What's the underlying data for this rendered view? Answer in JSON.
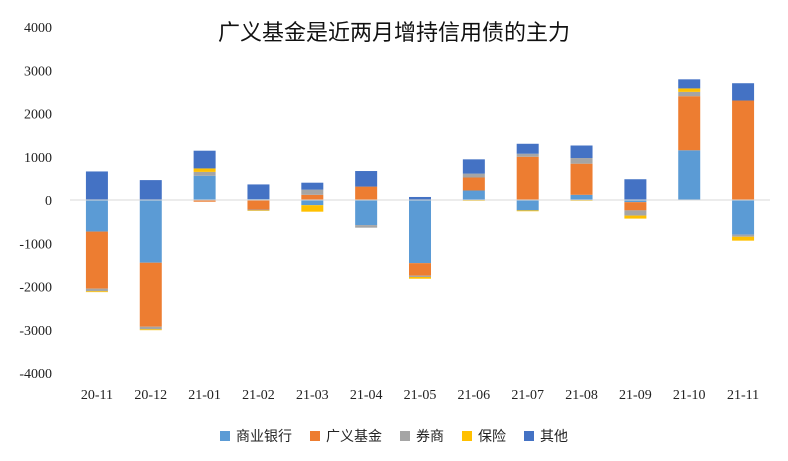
{
  "chart_data": {
    "type": "bar",
    "stacked": true,
    "title": "广义基金是近两月增持信用债的主力",
    "xlabel": "",
    "ylabel": "",
    "ylim": [
      -4000,
      4000
    ],
    "yticks": [
      4000,
      3000,
      2000,
      1000,
      0,
      -1000,
      -2000,
      -3000,
      -4000
    ],
    "grid": false,
    "legend_position": "bottom",
    "categories": [
      "20-11",
      "20-12",
      "21-01",
      "21-02",
      "21-03",
      "21-04",
      "21-05",
      "21-06",
      "21-07",
      "21-08",
      "21-09",
      "21-10",
      "21-11"
    ],
    "series": [
      {
        "name": "商业银行",
        "color": "#5B9BD5",
        "values": [
          -730,
          -1450,
          560,
          20,
          -120,
          -580,
          -1460,
          220,
          -240,
          120,
          -50,
          1150,
          -800
        ]
      },
      {
        "name": "广义基金",
        "color": "#ED7D31",
        "values": [
          -1320,
          -1480,
          -40,
          -220,
          120,
          310,
          -290,
          300,
          1000,
          720,
          -190,
          1250,
          2300
        ]
      },
      {
        "name": "券商",
        "color": "#A5A5A5",
        "values": [
          -60,
          -60,
          90,
          -20,
          120,
          -60,
          -30,
          90,
          70,
          130,
          -120,
          100,
          -50
        ]
      },
      {
        "name": "保险",
        "color": "#FFC000",
        "values": [
          -20,
          -20,
          80,
          -10,
          -150,
          0,
          -40,
          -20,
          -20,
          -20,
          -70,
          80,
          -90
        ]
      },
      {
        "name": "其他",
        "color": "#4472C4",
        "values": [
          660,
          460,
          410,
          340,
          160,
          360,
          70,
          330,
          230,
          290,
          480,
          210,
          400
        ]
      }
    ]
  }
}
